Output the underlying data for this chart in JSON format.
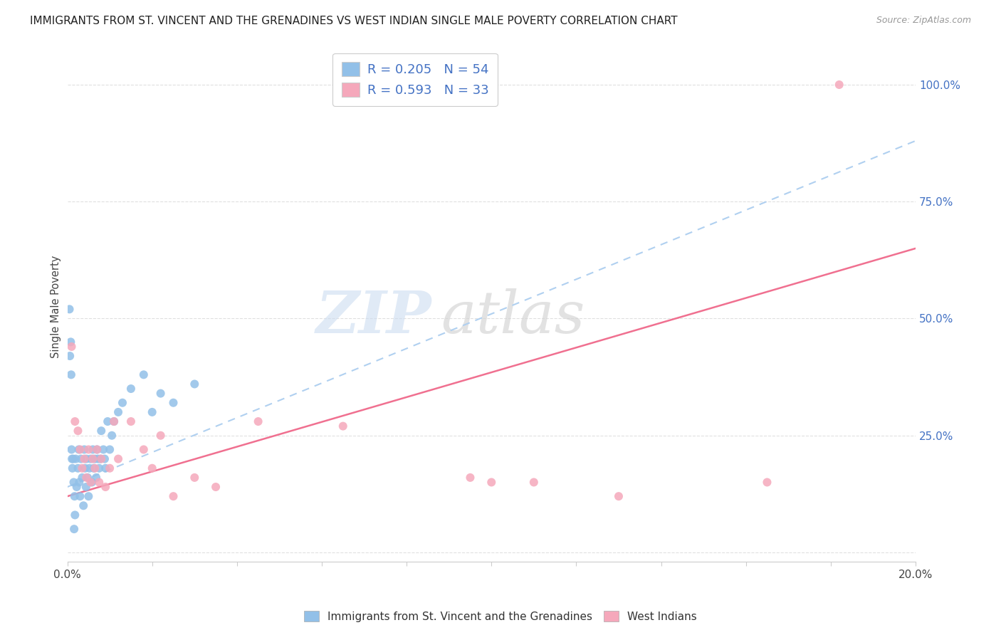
{
  "title": "IMMIGRANTS FROM ST. VINCENT AND THE GRENADINES VS WEST INDIAN SINGLE MALE POVERTY CORRELATION CHART",
  "source": "Source: ZipAtlas.com",
  "ylabel": "Single Male Poverty",
  "xlim": [
    0.0,
    20.0
  ],
  "ylim": [
    -2.0,
    107.0
  ],
  "yticks": [
    0,
    25,
    50,
    75,
    100
  ],
  "ytick_labels": [
    "",
    "25.0%",
    "50.0%",
    "75.0%",
    "100.0%"
  ],
  "xtick_labels": [
    "0.0%",
    "",
    "",
    "",
    "",
    "",
    "",
    "",
    "",
    "",
    "20.0%"
  ],
  "blue_R": 0.205,
  "blue_N": 54,
  "pink_R": 0.593,
  "pink_N": 33,
  "blue_color": "#92c0e8",
  "pink_color": "#f5a8bb",
  "blue_line_color": "#b0d0f0",
  "pink_line_color": "#f07090",
  "legend1_label": "Immigrants from St. Vincent and the Grenadines",
  "legend2_label": "West Indians",
  "blue_trend": [
    14.0,
    88.0
  ],
  "pink_trend": [
    12.0,
    65.0
  ],
  "blue_dots_x": [
    0.05,
    0.08,
    0.1,
    0.12,
    0.14,
    0.15,
    0.17,
    0.18,
    0.2,
    0.22,
    0.25,
    0.27,
    0.28,
    0.3,
    0.32,
    0.35,
    0.38,
    0.4,
    0.42,
    0.44,
    0.45,
    0.48,
    0.5,
    0.52,
    0.55,
    0.58,
    0.6,
    0.62,
    0.65,
    0.68,
    0.7,
    0.72,
    0.75,
    0.78,
    0.8,
    0.85,
    0.88,
    0.9,
    0.95,
    1.0,
    1.05,
    1.1,
    1.2,
    1.3,
    1.5,
    1.8,
    2.0,
    2.2,
    2.5,
    3.0,
    0.06,
    0.09,
    0.11,
    0.16
  ],
  "blue_dots_y": [
    52.0,
    45.0,
    22.0,
    18.0,
    20.0,
    15.0,
    12.0,
    8.0,
    20.0,
    14.0,
    18.0,
    22.0,
    15.0,
    12.0,
    20.0,
    16.0,
    10.0,
    22.0,
    18.0,
    14.0,
    20.0,
    16.0,
    12.0,
    18.0,
    20.0,
    15.0,
    22.0,
    18.0,
    20.0,
    16.0,
    22.0,
    20.0,
    18.0,
    20.0,
    26.0,
    22.0,
    20.0,
    18.0,
    28.0,
    22.0,
    25.0,
    28.0,
    30.0,
    32.0,
    35.0,
    38.0,
    30.0,
    34.0,
    32.0,
    36.0,
    42.0,
    38.0,
    20.0,
    5.0
  ],
  "pink_dots_x": [
    0.1,
    0.18,
    0.25,
    0.3,
    0.35,
    0.4,
    0.45,
    0.5,
    0.55,
    0.6,
    0.65,
    0.7,
    0.75,
    0.8,
    0.9,
    1.0,
    1.1,
    1.2,
    1.5,
    1.8,
    2.0,
    2.2,
    2.5,
    3.0,
    3.5,
    4.5,
    6.5,
    9.5,
    10.0,
    11.0,
    13.0,
    16.5,
    18.2
  ],
  "pink_dots_y": [
    44.0,
    28.0,
    26.0,
    22.0,
    18.0,
    20.0,
    16.0,
    22.0,
    15.0,
    20.0,
    18.0,
    22.0,
    15.0,
    20.0,
    14.0,
    18.0,
    28.0,
    20.0,
    28.0,
    22.0,
    18.0,
    25.0,
    12.0,
    16.0,
    14.0,
    28.0,
    27.0,
    16.0,
    15.0,
    15.0,
    12.0,
    15.0,
    100.0
  ]
}
